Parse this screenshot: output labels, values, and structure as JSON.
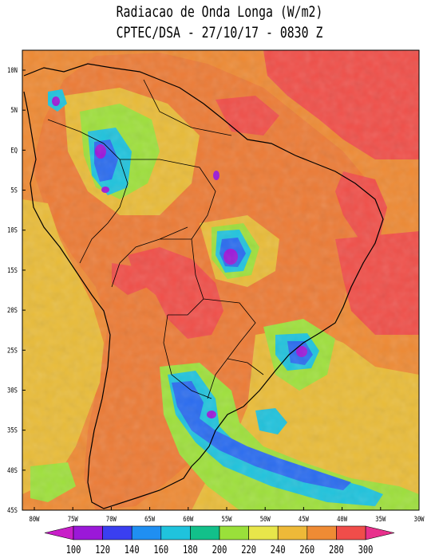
{
  "title": "Radiacao de Onda Longa (W/m2)",
  "subtitle": "CPTEC/DSA - 27/10/17 - 0830 Z",
  "lat_labels": [
    "10N",
    "5N",
    "EQ",
    "5S",
    "10S",
    "15S",
    "20S",
    "25S",
    "30S",
    "35S",
    "40S",
    "45S"
  ],
  "lon_labels": [
    "80W",
    "75W",
    "70W",
    "65W",
    "60W",
    "55W",
    "50W",
    "45W",
    "40W",
    "35W",
    "30W"
  ],
  "colorbar": {
    "labels": [
      "100",
      "120",
      "140",
      "160",
      "180",
      "200",
      "220",
      "240",
      "260",
      "280",
      "300"
    ],
    "colors": [
      "#9b18d8",
      "#3a3ff0",
      "#1f8ff2",
      "#1fc3dd",
      "#12c08a",
      "#9ae03a",
      "#e8e64a",
      "#eeb938",
      "#ef8b34",
      "#f04d4a"
    ],
    "under_color": "#c81ec8",
    "over_color": "#e8308c"
  },
  "palette": {
    "ocean": "#ee8a34",
    "land_warm": "#ec7b36",
    "hot": "#f04f49",
    "yellow": "#e9bc39",
    "green": "#9ee03c",
    "cyan": "#1fc3dd",
    "blue": "#2a6cf0",
    "purple": "#9b18d8"
  }
}
